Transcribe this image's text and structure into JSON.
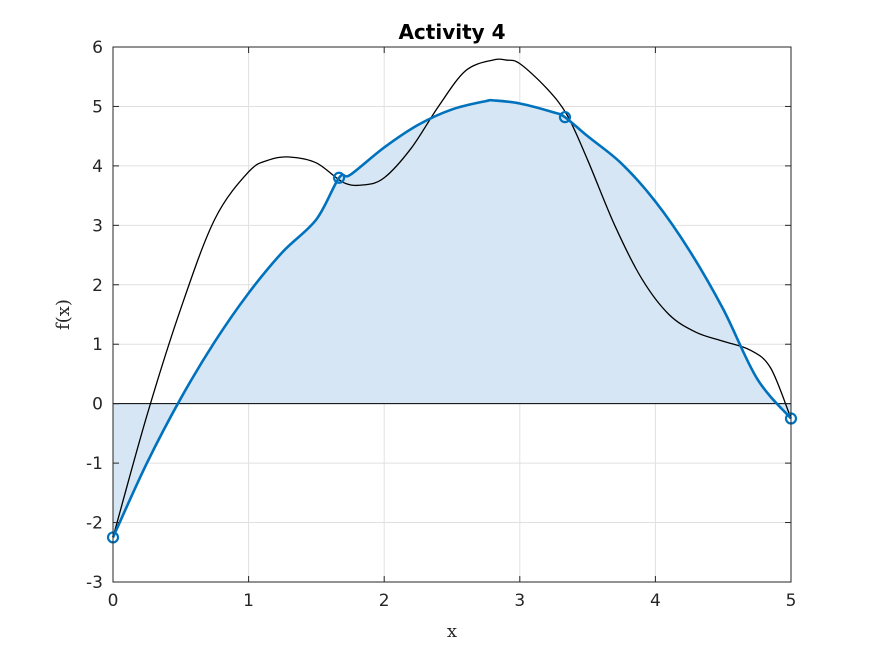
{
  "chart_data": {
    "type": "line",
    "title": "Activity 4",
    "xlabel": "x",
    "ylabel": "f(x)",
    "xlim": [
      0,
      5
    ],
    "ylim": [
      -3,
      6
    ],
    "xticks": [
      0,
      1,
      2,
      3,
      4,
      5
    ],
    "yticks": [
      -3,
      -2,
      -1,
      0,
      1,
      2,
      3,
      4,
      5,
      6
    ],
    "grid": true,
    "colors": {
      "fit": "#0072BD",
      "fill": "#D6E6F4",
      "curve": "#000000",
      "grid": "#E0E0E0",
      "axis": "#262626"
    },
    "series": [
      {
        "style": "thin-black-line",
        "x": [
          0,
          0.25,
          0.5,
          0.75,
          1.0,
          1.15,
          1.3,
          1.5,
          1.7,
          1.85,
          2.0,
          2.2,
          2.4,
          2.6,
          2.8,
          2.9,
          3.0,
          3.2,
          3.35,
          3.5,
          3.7,
          3.9,
          4.1,
          4.3,
          4.5,
          4.7,
          4.85,
          5.0
        ],
        "y": [
          -2.25,
          -0.2,
          1.6,
          3.1,
          3.9,
          4.1,
          4.15,
          4.05,
          3.72,
          3.68,
          3.8,
          4.3,
          5.0,
          5.6,
          5.78,
          5.78,
          5.72,
          5.3,
          4.85,
          4.1,
          3.0,
          2.1,
          1.5,
          1.2,
          1.05,
          0.9,
          0.6,
          -0.25
        ]
      },
      {
        "style": "thick-blue-line-with-markers",
        "x": [
          0,
          0.25,
          0.5,
          0.75,
          1.0,
          1.25,
          1.5,
          1.667,
          1.75,
          2.0,
          2.25,
          2.5,
          2.75,
          2.81,
          3.0,
          3.25,
          3.333,
          3.5,
          3.75,
          4.0,
          4.25,
          4.5,
          4.75,
          5.0
        ],
        "y": [
          -2.25,
          -1.0,
          0.09,
          1.04,
          1.86,
          2.55,
          3.1,
          3.8,
          3.85,
          4.31,
          4.69,
          4.95,
          5.09,
          5.1,
          5.05,
          4.9,
          4.82,
          4.5,
          4.04,
          3.4,
          2.58,
          1.59,
          0.42,
          -0.25
        ],
        "markers_x": [
          0,
          1.667,
          3.333,
          5.0
        ],
        "markers_y": [
          -2.25,
          3.8,
          4.82,
          -0.25
        ]
      }
    ]
  }
}
